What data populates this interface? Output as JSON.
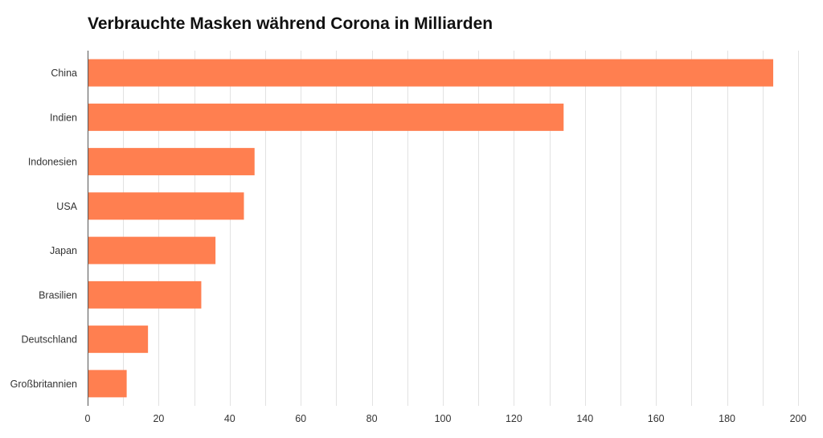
{
  "chart_data": {
    "type": "bar",
    "orientation": "horizontal",
    "title": "Verbrauchte Masken während Corona in Milliarden",
    "xlabel": "",
    "ylabel": "",
    "categories": [
      "China",
      "Indien",
      "Indonesien",
      "USA",
      "Japan",
      "Brasilien",
      "Deutschland",
      "Großbritannien"
    ],
    "values": [
      193,
      134,
      47,
      44,
      36,
      32,
      17,
      11
    ],
    "xlim": [
      0,
      200
    ],
    "xticks": [
      0,
      20,
      40,
      60,
      80,
      100,
      120,
      140,
      160,
      180,
      200
    ],
    "grid": true,
    "legend": "none",
    "bar_color": "#ff7f50",
    "grid_color": "#e2e2e2",
    "axis_color": "#555555"
  }
}
